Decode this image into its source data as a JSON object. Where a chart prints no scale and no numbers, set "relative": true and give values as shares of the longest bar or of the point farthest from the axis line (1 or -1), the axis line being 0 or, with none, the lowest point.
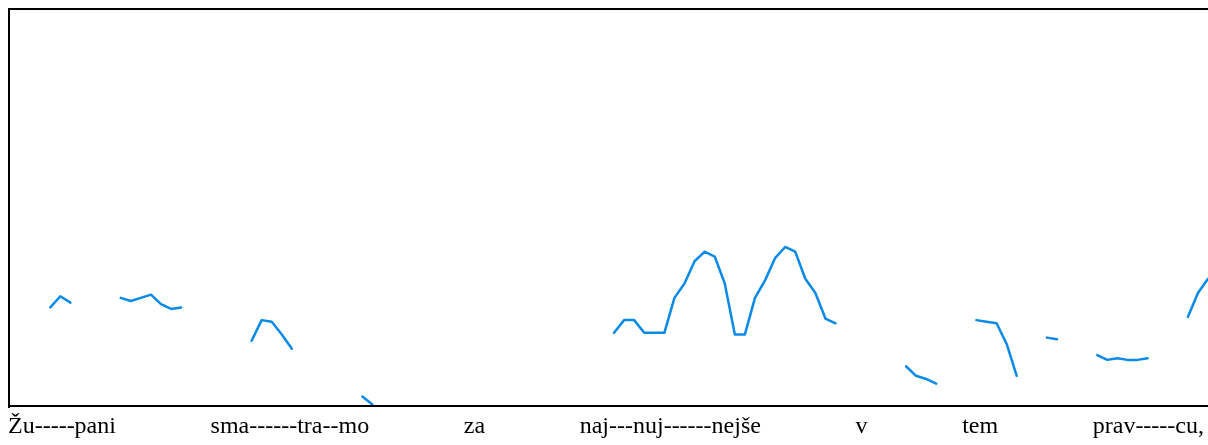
{
  "chart_data": {
    "type": "line",
    "relative": true,
    "xlabel": "Žu-----pani sma------tra--mo za naj---nuj------nejše v tem prav-----cu,",
    "categories": [
      null,
      null,
      null,
      null,
      null,
      null,
      null,
      null,
      null,
      null,
      null,
      null,
      null,
      null,
      null,
      null,
      null,
      null,
      null,
      null,
      null,
      null,
      null,
      null,
      null,
      null,
      null,
      null,
      null,
      null,
      null,
      null,
      null,
      null,
      null,
      null,
      null,
      null,
      null,
      null,
      null,
      null,
      null,
      null,
      null,
      null,
      null,
      null,
      null,
      null,
      null,
      null,
      null,
      null,
      null,
      null,
      null,
      null,
      null,
      null,
      null,
      null,
      null,
      null,
      null,
      null,
      null,
      null,
      null,
      null,
      null,
      null,
      null,
      null,
      null,
      null,
      null,
      null,
      null,
      null,
      null,
      null,
      null,
      null,
      null,
      null,
      null,
      null,
      null,
      null,
      null,
      null,
      null,
      null,
      null,
      null,
      null,
      null,
      null,
      null,
      null,
      null,
      null,
      null,
      null,
      null,
      null,
      null,
      null,
      null,
      null,
      null,
      null,
      null,
      null,
      null,
      null,
      null,
      null,
      null
    ],
    "series": [
      {
        "color": "#0a8ae6",
        "values": [
          null,
          null,
          null,
          null,
          0.62,
          0.69,
          0.65,
          null,
          null,
          null,
          null,
          null,
          null,
          null,
          null,
          null,
          null,
          null,
          null,
          null,
          null,
          null,
          null,
          null,
          null,
          null,
          null,
          null,
          null,
          null,
          null,
          null,
          null,
          null,
          null,
          null,
          null,
          null,
          null,
          null,
          null,
          null,
          null,
          null,
          null,
          null,
          null,
          null,
          null,
          null,
          null,
          null,
          null,
          null,
          null,
          null,
          null,
          null,
          null,
          null,
          null,
          null,
          null,
          null,
          null,
          null,
          null,
          null,
          null,
          null,
          null,
          null,
          null,
          null,
          null,
          null,
          null,
          null,
          null,
          null,
          null,
          null,
          null,
          null,
          null,
          null,
          null,
          null,
          null,
          null,
          null,
          null,
          null,
          null,
          null,
          null,
          null,
          null,
          null,
          null,
          null,
          null,
          null,
          null,
          null,
          null,
          null,
          null,
          null,
          null,
          null,
          null,
          null,
          null,
          null,
          null,
          null,
          null,
          null,
          null
        ]
      },
      {
        "color": "#0a8ae6",
        "values": [
          null,
          null,
          null,
          null,
          null,
          null,
          null,
          null,
          null,
          null,
          null,
          0.68,
          0.66,
          0.68,
          0.7,
          0.64,
          0.61,
          0.62,
          null,
          null,
          null,
          null,
          null,
          null,
          null,
          null,
          null,
          null,
          null,
          null,
          null,
          null,
          null,
          null,
          null,
          null,
          null,
          null,
          null,
          null,
          null,
          null,
          null,
          null,
          null,
          null,
          null,
          null,
          null,
          null,
          null,
          null,
          null,
          null,
          null,
          null,
          null,
          null,
          null,
          null,
          null,
          null,
          null,
          null,
          null,
          null,
          null,
          null,
          null,
          null,
          null,
          null,
          null,
          null,
          null,
          null,
          null,
          null,
          null,
          null,
          null,
          null,
          null,
          null,
          null,
          null,
          null,
          null,
          null,
          null,
          null,
          null,
          null,
          null,
          null,
          null,
          null,
          null,
          null,
          null,
          null,
          null,
          null,
          null,
          null,
          null,
          null,
          null,
          null,
          null,
          null,
          null,
          null,
          null,
          null,
          null,
          null,
          null,
          null,
          null
        ]
      },
      {
        "color": "#0a8ae6",
        "values": [
          null,
          null,
          null,
          null,
          null,
          null,
          null,
          null,
          null,
          null,
          null,
          null,
          null,
          null,
          null,
          null,
          null,
          null,
          null,
          null,
          null,
          null,
          null,
          null,
          0.41,
          0.54,
          0.53,
          0.45,
          0.36,
          null,
          null,
          null,
          null,
          null,
          null,
          null,
          null,
          null,
          null,
          null,
          null,
          null,
          null,
          null,
          null,
          null,
          null,
          null,
          null,
          null,
          null,
          null,
          null,
          null,
          null,
          null,
          null,
          null,
          null,
          null,
          null,
          null,
          null,
          null,
          null,
          null,
          null,
          null,
          null,
          null,
          null,
          null,
          null,
          null,
          null,
          null,
          null,
          null,
          null,
          null,
          null,
          null,
          null,
          null,
          null,
          null,
          null,
          null,
          null,
          null,
          null,
          null,
          null,
          null,
          null,
          null,
          null,
          null,
          null,
          null,
          null,
          null,
          null,
          null,
          null,
          null,
          null,
          null,
          null,
          null,
          null,
          null,
          null,
          null,
          null,
          null,
          null,
          null,
          null,
          null
        ]
      },
      {
        "color": "#0a8ae6",
        "values": [
          null,
          null,
          null,
          null,
          null,
          null,
          null,
          null,
          null,
          null,
          null,
          null,
          null,
          null,
          null,
          null,
          null,
          null,
          null,
          null,
          null,
          null,
          null,
          null,
          null,
          null,
          null,
          null,
          null,
          null,
          null,
          null,
          null,
          null,
          null,
          0.06,
          0.01,
          null,
          null,
          null,
          null,
          null,
          null,
          null,
          null,
          null,
          null,
          null,
          null,
          null,
          null,
          null,
          null,
          null,
          null,
          null,
          null,
          null,
          null,
          null,
          null,
          null,
          null,
          null,
          null,
          null,
          null,
          null,
          null,
          null,
          null,
          null,
          null,
          null,
          null,
          null,
          null,
          null,
          null,
          null,
          null,
          null,
          null,
          null,
          null,
          null,
          null,
          null,
          null,
          null,
          null,
          null,
          null,
          null,
          null,
          null,
          null,
          null,
          null,
          null,
          null,
          null,
          null,
          null,
          null,
          null,
          null,
          null,
          null,
          null,
          null,
          null,
          null,
          null,
          null,
          null,
          null,
          null,
          null,
          null
        ]
      },
      {
        "color": "#0a8ae6",
        "values": [
          null,
          null,
          null,
          null,
          null,
          null,
          null,
          null,
          null,
          null,
          null,
          null,
          null,
          null,
          null,
          null,
          null,
          null,
          null,
          null,
          null,
          null,
          null,
          null,
          null,
          null,
          null,
          null,
          null,
          null,
          null,
          null,
          null,
          null,
          null,
          null,
          null,
          null,
          null,
          null,
          null,
          null,
          null,
          null,
          null,
          null,
          null,
          null,
          null,
          null,
          null,
          null,
          null,
          null,
          null,
          null,
          null,
          null,
          null,
          null,
          0.46,
          0.54,
          0.54,
          0.46,
          0.46,
          0.46,
          0.68,
          0.77,
          0.91,
          0.97,
          0.94,
          0.77,
          0.45,
          0.45,
          0.68,
          0.79,
          0.93,
          1,
          0.97,
          0.8,
          0.71,
          0.55,
          0.52,
          null,
          null,
          null,
          null,
          null,
          null,
          null,
          null,
          null,
          null,
          null,
          null,
          null,
          null,
          null,
          null,
          null,
          null,
          null,
          null,
          null,
          null,
          null,
          null,
          null,
          null,
          null,
          null,
          null,
          null,
          null,
          null,
          null,
          null,
          null,
          null,
          null
        ]
      },
      {
        "color": "#0a8ae6",
        "values": [
          null,
          null,
          null,
          null,
          null,
          null,
          null,
          null,
          null,
          null,
          null,
          null,
          null,
          null,
          null,
          null,
          null,
          null,
          null,
          null,
          null,
          null,
          null,
          null,
          null,
          null,
          null,
          null,
          null,
          null,
          null,
          null,
          null,
          null,
          null,
          null,
          null,
          null,
          null,
          null,
          null,
          null,
          null,
          null,
          null,
          null,
          null,
          null,
          null,
          null,
          null,
          null,
          null,
          null,
          null,
          null,
          null,
          null,
          null,
          null,
          null,
          null,
          null,
          null,
          null,
          null,
          null,
          null,
          null,
          null,
          null,
          null,
          null,
          null,
          null,
          null,
          null,
          null,
          null,
          null,
          null,
          null,
          null,
          null,
          null,
          null,
          null,
          null,
          null,
          0.25,
          0.19,
          0.17,
          0.14,
          null,
          null,
          null,
          null,
          null,
          null,
          null,
          null,
          null,
          null,
          null,
          null,
          null,
          null,
          null,
          null,
          null,
          null,
          null,
          null,
          null,
          null,
          null,
          null,
          null,
          null,
          null
        ]
      },
      {
        "color": "#0a8ae6",
        "values": [
          null,
          null,
          null,
          null,
          null,
          null,
          null,
          null,
          null,
          null,
          null,
          null,
          null,
          null,
          null,
          null,
          null,
          null,
          null,
          null,
          null,
          null,
          null,
          null,
          null,
          null,
          null,
          null,
          null,
          null,
          null,
          null,
          null,
          null,
          null,
          null,
          null,
          null,
          null,
          null,
          null,
          null,
          null,
          null,
          null,
          null,
          null,
          null,
          null,
          null,
          null,
          null,
          null,
          null,
          null,
          null,
          null,
          null,
          null,
          null,
          null,
          null,
          null,
          null,
          null,
          null,
          null,
          null,
          null,
          null,
          null,
          null,
          null,
          null,
          null,
          null,
          null,
          null,
          null,
          null,
          null,
          null,
          null,
          null,
          null,
          null,
          null,
          null,
          null,
          null,
          null,
          null,
          null,
          null,
          null,
          null,
          0.54,
          0.53,
          0.52,
          0.39,
          0.19,
          null,
          null,
          null,
          null,
          null,
          null,
          null,
          null,
          null,
          null,
          null,
          null,
          null,
          null,
          null,
          null,
          null,
          null,
          null
        ]
      },
      {
        "color": "#0a8ae6",
        "values": [
          null,
          null,
          null,
          null,
          null,
          null,
          null,
          null,
          null,
          null,
          null,
          null,
          null,
          null,
          null,
          null,
          null,
          null,
          null,
          null,
          null,
          null,
          null,
          null,
          null,
          null,
          null,
          null,
          null,
          null,
          null,
          null,
          null,
          null,
          null,
          null,
          null,
          null,
          null,
          null,
          null,
          null,
          null,
          null,
          null,
          null,
          null,
          null,
          null,
          null,
          null,
          null,
          null,
          null,
          null,
          null,
          null,
          null,
          null,
          null,
          null,
          null,
          null,
          null,
          null,
          null,
          null,
          null,
          null,
          null,
          null,
          null,
          null,
          null,
          null,
          null,
          null,
          null,
          null,
          null,
          null,
          null,
          null,
          null,
          null,
          null,
          null,
          null,
          null,
          null,
          null,
          null,
          null,
          null,
          null,
          null,
          null,
          null,
          null,
          null,
          null,
          null,
          null,
          0.43,
          0.42,
          null,
          null,
          null,
          null,
          null,
          null,
          null,
          null,
          null,
          null,
          null,
          null,
          null,
          null,
          null
        ]
      },
      {
        "color": "#0a8ae6",
        "values": [
          null,
          null,
          null,
          null,
          null,
          null,
          null,
          null,
          null,
          null,
          null,
          null,
          null,
          null,
          null,
          null,
          null,
          null,
          null,
          null,
          null,
          null,
          null,
          null,
          null,
          null,
          null,
          null,
          null,
          null,
          null,
          null,
          null,
          null,
          null,
          null,
          null,
          null,
          null,
          null,
          null,
          null,
          null,
          null,
          null,
          null,
          null,
          null,
          null,
          null,
          null,
          null,
          null,
          null,
          null,
          null,
          null,
          null,
          null,
          null,
          null,
          null,
          null,
          null,
          null,
          null,
          null,
          null,
          null,
          null,
          null,
          null,
          null,
          null,
          null,
          null,
          null,
          null,
          null,
          null,
          null,
          null,
          null,
          null,
          null,
          null,
          null,
          null,
          null,
          null,
          null,
          null,
          null,
          null,
          null,
          null,
          null,
          null,
          null,
          null,
          null,
          null,
          null,
          null,
          null,
          null,
          null,
          null,
          0.32,
          0.29,
          0.3,
          0.29,
          0.29,
          0.3,
          null,
          null,
          null,
          null,
          null,
          null
        ]
      },
      {
        "color": "#0a8ae6",
        "values": [
          null,
          null,
          null,
          null,
          null,
          null,
          null,
          null,
          null,
          null,
          null,
          null,
          null,
          null,
          null,
          null,
          null,
          null,
          null,
          null,
          null,
          null,
          null,
          null,
          null,
          null,
          null,
          null,
          null,
          null,
          null,
          null,
          null,
          null,
          null,
          null,
          null,
          null,
          null,
          null,
          null,
          null,
          null,
          null,
          null,
          null,
          null,
          null,
          null,
          null,
          null,
          null,
          null,
          null,
          null,
          null,
          null,
          null,
          null,
          null,
          null,
          null,
          null,
          null,
          null,
          null,
          null,
          null,
          null,
          null,
          null,
          null,
          null,
          null,
          null,
          null,
          null,
          null,
          null,
          null,
          null,
          null,
          null,
          null,
          null,
          null,
          null,
          null,
          null,
          null,
          null,
          null,
          null,
          null,
          null,
          null,
          null,
          null,
          null,
          null,
          null,
          null,
          null,
          null,
          null,
          null,
          null,
          null,
          null,
          null,
          null,
          null,
          null,
          null,
          null,
          null,
          null,
          0.56,
          0.71,
          0.8
        ]
      }
    ],
    "grid": false,
    "legend": false,
    "marker": "none",
    "line_style": "solid"
  }
}
